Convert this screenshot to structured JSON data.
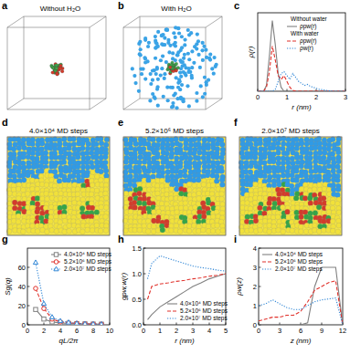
{
  "panel_labels": [
    "a",
    "b",
    "c",
    "d",
    "e",
    "f",
    "g",
    "h",
    "i"
  ],
  "renders": [
    {
      "caption": "Without H₂O"
    },
    {
      "caption": "With H₂O"
    },
    {
      "caption": "4.0×10⁴ MD steps"
    },
    {
      "caption": "5.2×10⁶ MD steps"
    },
    {
      "caption": "2.0×10⁷ MD steps"
    }
  ],
  "chart_data": [
    {
      "type": "line",
      "x_label": "r (nm)",
      "y_label": "ρ(r)",
      "xlim": [
        0,
        3
      ],
      "xticks": [
        0,
        1,
        2,
        3
      ],
      "ylim": [
        0,
        4
      ],
      "yticks": [],
      "tick_labels": "x",
      "legend": "upper right",
      "annotations": [
        "Without water",
        "With water"
      ],
      "x": [
        0,
        0.1,
        0.2,
        0.3,
        0.4,
        0.5,
        0.6,
        0.7,
        0.8,
        0.9,
        1.0,
        1.1,
        1.2,
        1.3,
        1.4,
        1.5,
        1.6,
        1.7,
        1.8,
        1.9,
        2.0,
        2.1,
        2.2,
        2.3,
        2.4,
        2.5,
        2.6,
        2.7,
        2.8,
        2.9,
        3.0
      ],
      "series": [
        {
          "name": "ρpw(r)",
          "color": "#808080",
          "line_style": "solid",
          "values": [
            0,
            0,
            0,
            0.3,
            1.8,
            3.6,
            2.4,
            0.9,
            0.2,
            0,
            0,
            0,
            0,
            0,
            0,
            0,
            0,
            0,
            0,
            0,
            0,
            0,
            0,
            0,
            0,
            0,
            0,
            0,
            0,
            0,
            0
          ]
        },
        {
          "name": "ρpw(r)",
          "color": "#e0302a",
          "line_style": "dashed",
          "values": [
            0,
            0,
            0,
            0.2,
            1.0,
            2.3,
            1.6,
            0.8,
            0.6,
            0.8,
            0.5,
            0.2,
            0.05,
            0,
            0,
            0,
            0,
            0,
            0,
            0,
            0,
            0,
            0,
            0,
            0,
            0,
            0,
            0,
            0,
            0,
            0
          ]
        },
        {
          "name": "ρw(r)",
          "color": "#2f86d6",
          "line_style": "dotted",
          "values": [
            0,
            0,
            0,
            0,
            0,
            0,
            0.1,
            0.5,
            0.9,
            1.0,
            0.8,
            0.6,
            0.9,
            0.7,
            0.5,
            0.4,
            0.3,
            0.35,
            0.25,
            0.2,
            0.15,
            0.1,
            0.08,
            0.05,
            0.03,
            0.02,
            0,
            0,
            0,
            0,
            0
          ]
        }
      ]
    },
    {
      "type": "line",
      "x_label": "qL/2π",
      "y_label": "Sg(q)",
      "xlim": [
        0,
        10
      ],
      "xticks": [
        0,
        2,
        4,
        6,
        8,
        10
      ],
      "ylim": [
        0,
        80
      ],
      "yticks": [
        0,
        20,
        40,
        60
      ],
      "legend": "upper right",
      "x": [
        1,
        2,
        3,
        4,
        5,
        6,
        7,
        8,
        9
      ],
      "series": [
        {
          "name": "4.0×10⁴ MD steps",
          "color": "#808080",
          "line_style": "solid",
          "marker": "square",
          "values": [
            16,
            6,
            3,
            2,
            1.5,
            1.2,
            1,
            0.8,
            0.7
          ]
        },
        {
          "name": "5.2×10⁶ MD steps",
          "color": "#e0302a",
          "line_style": "dashed",
          "marker": "circle",
          "values": [
            38,
            17,
            6,
            3,
            2,
            1.5,
            1,
            0.8,
            0.6
          ]
        },
        {
          "name": "2.0×10⁷ MD steps",
          "color": "#2f86d6",
          "line_style": "dotted",
          "marker": "triangle",
          "values": [
            65,
            22,
            8,
            4,
            2.5,
            1.5,
            1,
            0.8,
            0.6
          ]
        }
      ]
    },
    {
      "type": "line",
      "x_label": "r (nm)",
      "y_label": "gpw,w(r)",
      "xlim": [
        0,
        5
      ],
      "xticks": [
        0,
        1,
        2,
        3,
        4,
        5
      ],
      "ylim": [
        0,
        1.5
      ],
      "yticks": [
        {
          "value": 0,
          "label": "0.0"
        },
        {
          "value": 0.5,
          "label": "0.5"
        },
        {
          "value": 1,
          "label": "1.0"
        },
        {
          "value": 1.5,
          "label": "1.5"
        }
      ],
      "legend": "lower right",
      "x": [
        0.25,
        0.5,
        1,
        1.5,
        2,
        2.5,
        3,
        3.5,
        4,
        4.5,
        5
      ],
      "series": [
        {
          "name": "4.0×10⁴ MD steps",
          "color": "#808080",
          "line_style": "solid",
          "values": [
            0.1,
            0.2,
            0.35,
            0.45,
            0.55,
            0.65,
            0.75,
            0.82,
            0.9,
            0.95,
            1.0
          ]
        },
        {
          "name": "5.2×10⁶ MD steps",
          "color": "#e0302a",
          "line_style": "dashed",
          "values": [
            0.5,
            0.75,
            0.8,
            0.82,
            0.85,
            0.87,
            0.9,
            0.92,
            0.95,
            0.97,
            1.0
          ]
        },
        {
          "name": "2.0×10⁷ MD steps",
          "color": "#2f86d6",
          "line_style": "dotted",
          "values": [
            0.9,
            1.2,
            1.35,
            1.3,
            1.25,
            1.2,
            1.15,
            1.12,
            1.1,
            1.07,
            1.05
          ]
        }
      ]
    },
    {
      "type": "line",
      "x_label": "z (nm)",
      "y_label": "ρw(z)",
      "xlim": [
        0,
        12
      ],
      "xticks": [
        0,
        3,
        6,
        9,
        12
      ],
      "ylim": [
        0,
        4
      ],
      "yticks": [
        0,
        1,
        2,
        3,
        4
      ],
      "legend": "upper left",
      "x": [
        0,
        1,
        2,
        3,
        4,
        5,
        6,
        7,
        8,
        9,
        10,
        11,
        12
      ],
      "series": [
        {
          "name": "4.0×10⁴ MD steps",
          "color": "#808080",
          "line_style": "solid",
          "values": [
            0,
            0,
            0,
            0,
            0,
            0,
            0,
            0.1,
            2.0,
            3.0,
            3.0,
            3.0,
            0
          ]
        },
        {
          "name": "5.2×10⁶ MD steps",
          "color": "#e0302a",
          "line_style": "dashed",
          "values": [
            0.2,
            0.3,
            0.4,
            0.4,
            0.5,
            0.5,
            0.7,
            1.2,
            1.8,
            2.0,
            2.2,
            2.3,
            0
          ]
        },
        {
          "name": "2.0×10⁷ MD steps",
          "color": "#2f86d6",
          "line_style": "dotted",
          "values": [
            1.0,
            1.1,
            1.3,
            1.1,
            0.9,
            0.8,
            0.8,
            1.0,
            1.2,
            1.3,
            1.35,
            1.4,
            0
          ]
        }
      ]
    }
  ]
}
